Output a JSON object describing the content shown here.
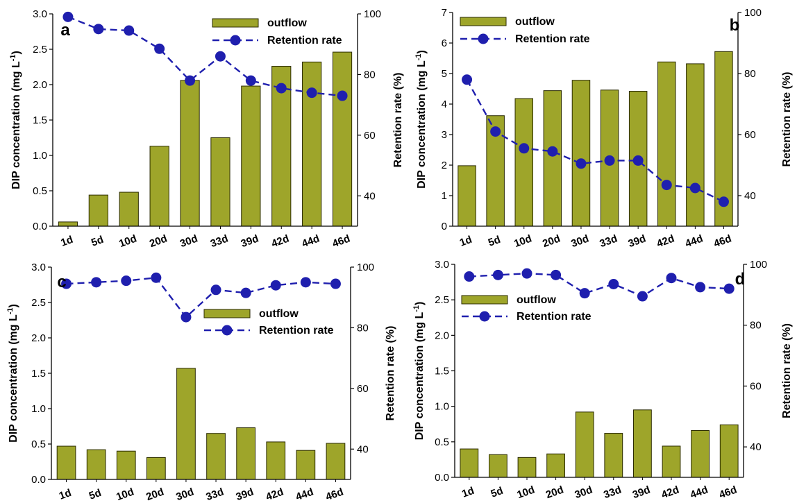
{
  "colors": {
    "bar_fill": "#9ea52a",
    "bar_stroke": "#2a2a00",
    "line": "#1f1fae",
    "marker": "#1f1fae"
  },
  "y_left_title": "DIP concentration (mg L",
  "y_left_sup": "-1",
  "y_left_close": ")",
  "y_right_title": "Retention rate (%)",
  "legend": {
    "bar": "outflow",
    "line": "Retention rate"
  },
  "chart_data": [
    {
      "type": "bar+line",
      "panel": "a",
      "categories": [
        "1d",
        "5d",
        "10d",
        "20d",
        "30d",
        "33d",
        "39d",
        "42d",
        "44d",
        "46d"
      ],
      "series": [
        {
          "name": "outflow",
          "axis": "left",
          "values": [
            0.06,
            0.44,
            0.48,
            1.13,
            2.06,
            1.25,
            1.98,
            2.26,
            2.32,
            2.46
          ]
        },
        {
          "name": "Retention rate",
          "axis": "right",
          "values": [
            99,
            95,
            94.5,
            88.5,
            78,
            86,
            78,
            75.5,
            74,
            73
          ]
        }
      ],
      "ylim_left": [
        0,
        3.0
      ],
      "yticks_left": [
        "0.0",
        "0.5",
        "1.0",
        "1.5",
        "2.0",
        "2.5",
        "3.0"
      ],
      "ylim_right": [
        30,
        100
      ],
      "yticks_right": [
        "40",
        "60",
        "80",
        "100"
      ],
      "legend_position": "top-right"
    },
    {
      "type": "bar+line",
      "panel": "b",
      "categories": [
        "1d",
        "5d",
        "10d",
        "20d",
        "30d",
        "33d",
        "39d",
        "42d",
        "44d",
        "46d"
      ],
      "series": [
        {
          "name": "outflow",
          "axis": "left",
          "values": [
            1.98,
            3.62,
            4.18,
            4.44,
            4.78,
            4.46,
            4.42,
            5.38,
            5.32,
            5.72
          ]
        },
        {
          "name": "Retention rate",
          "axis": "right",
          "values": [
            78,
            61,
            55.5,
            54.5,
            50.5,
            51.5,
            51.5,
            43.5,
            42.5,
            38
          ]
        }
      ],
      "ylim_left": [
        0,
        7
      ],
      "yticks_left": [
        "0",
        "1",
        "2",
        "3",
        "4",
        "5",
        "6",
        "7"
      ],
      "ylim_right": [
        30,
        100
      ],
      "yticks_right": [
        "40",
        "60",
        "80",
        "100"
      ],
      "legend_position": "top-left"
    },
    {
      "type": "bar+line",
      "panel": "c",
      "categories": [
        "1d",
        "5d",
        "10d",
        "20d",
        "30d",
        "33d",
        "39d",
        "42d",
        "44d",
        "46d"
      ],
      "series": [
        {
          "name": "outflow",
          "axis": "left",
          "values": [
            0.47,
            0.42,
            0.4,
            0.31,
            1.57,
            0.65,
            0.73,
            0.53,
            0.41,
            0.51
          ]
        },
        {
          "name": "Retention rate",
          "axis": "right",
          "values": [
            94.5,
            95,
            95.5,
            96.5,
            83.5,
            92.5,
            91.5,
            94,
            95,
            94.5
          ]
        }
      ],
      "ylim_left": [
        0,
        3.0
      ],
      "yticks_left": [
        "0.0",
        "0.5",
        "1.0",
        "1.5",
        "2.0",
        "2.5",
        "3.0"
      ],
      "ylim_right": [
        30,
        100
      ],
      "yticks_right": [
        "40",
        "60",
        "80",
        "100"
      ],
      "legend_position": "center-right"
    },
    {
      "type": "bar+line",
      "panel": "d",
      "categories": [
        "1d",
        "5d",
        "10d",
        "20d",
        "30d",
        "33d",
        "39d",
        "42d",
        "44d",
        "46d"
      ],
      "series": [
        {
          "name": "outflow",
          "axis": "left",
          "values": [
            0.4,
            0.32,
            0.28,
            0.33,
            0.92,
            0.62,
            0.95,
            0.44,
            0.66,
            0.74
          ]
        },
        {
          "name": "Retention rate",
          "axis": "right",
          "values": [
            96,
            96.5,
            97,
            96.5,
            90.5,
            93.5,
            89.5,
            95.5,
            92.5,
            92
          ]
        }
      ],
      "ylim_left": [
        0,
        3.0
      ],
      "yticks_left": [
        "0.0",
        "0.5",
        "1.0",
        "1.5",
        "2.0",
        "2.5",
        "3.0"
      ],
      "ylim_right": [
        30,
        100
      ],
      "yticks_right": [
        "40",
        "60",
        "80",
        "100"
      ],
      "legend_position": "top-left"
    }
  ]
}
